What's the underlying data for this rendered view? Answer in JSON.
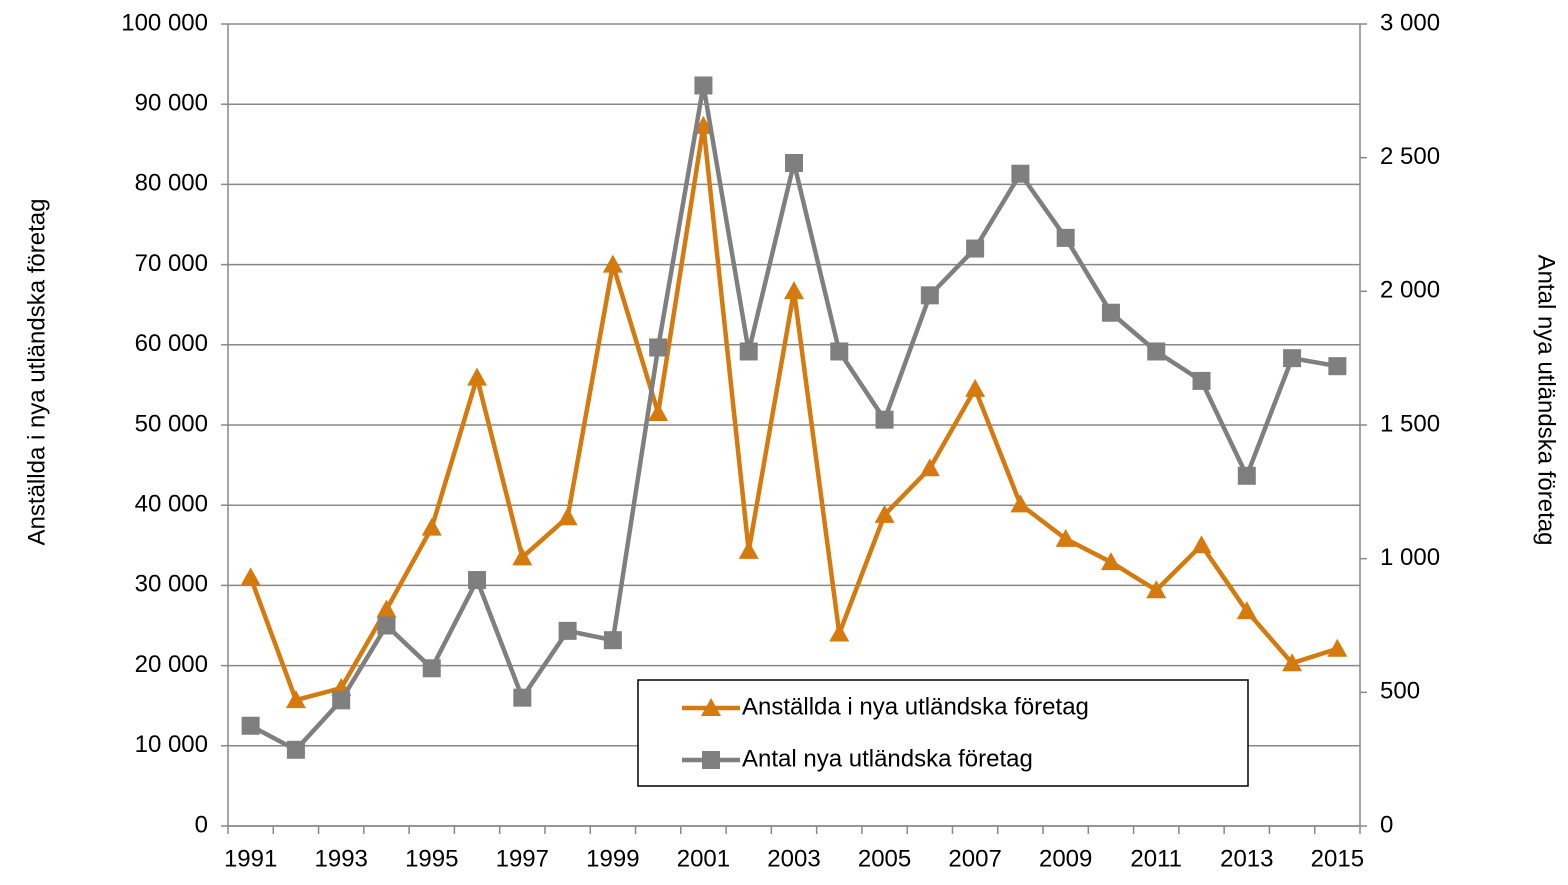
{
  "chart_data": {
    "type": "line",
    "y_label": "Anställda i nya utländska företag",
    "y2_label": "Antal nya utländska företag",
    "categories": [
      "1991",
      null,
      "1993",
      null,
      "1995",
      null,
      "1997",
      null,
      "1999",
      null,
      "2001",
      null,
      "2003",
      null,
      "2005",
      null,
      "2007",
      null,
      "2009",
      null,
      "2011",
      null,
      "2013",
      null,
      "2015"
    ],
    "series": [
      {
        "name": "Anställda i nya utländska företag",
        "color": "#d47a0e",
        "marker": "triangle",
        "axis": "y",
        "values": [
          31000,
          15700,
          17200,
          27000,
          37200,
          55900,
          33500,
          38500,
          70000,
          51500,
          87300,
          34300,
          66700,
          24000,
          38800,
          44600,
          54500,
          40100,
          35800,
          32900,
          29400,
          35000,
          26800,
          20300,
          22100
        ]
      },
      {
        "name": "Antal nya utländska företag",
        "color": "#7f7f7f",
        "marker": "square",
        "axis": "y2",
        "values": [
          375,
          285,
          470,
          750,
          590,
          920,
          480,
          730,
          695,
          1790,
          2770,
          1775,
          2480,
          1775,
          1520,
          1985,
          2160,
          2440,
          2200,
          1920,
          1775,
          1665,
          1310,
          1750,
          1720
        ]
      }
    ],
    "ylim": [
      0,
      100000
    ],
    "yticks": [
      0,
      {
        "value": 10000,
        "label": "10 000"
      },
      {
        "value": 20000,
        "label": "20 000"
      },
      {
        "value": 30000,
        "label": "30 000"
      },
      {
        "value": 40000,
        "label": "40 000"
      },
      {
        "value": 50000,
        "label": "50 000"
      },
      {
        "value": 60000,
        "label": "60 000"
      },
      {
        "value": 70000,
        "label": "70 000"
      },
      {
        "value": 80000,
        "label": "80 000"
      },
      {
        "value": 90000,
        "label": "90 000"
      },
      {
        "value": 100000,
        "label": "100 000"
      }
    ],
    "y2lim": [
      0,
      3000
    ],
    "y2ticks": [
      0,
      500,
      {
        "value": 1000,
        "label": "1 000"
      },
      {
        "value": 1500,
        "label": "1 500"
      },
      {
        "value": 2000,
        "label": "2 000"
      },
      {
        "value": 2500,
        "label": "2 500"
      },
      {
        "value": 3000,
        "label": "3 000"
      }
    ],
    "grid": true,
    "legend": "bottom-right"
  }
}
